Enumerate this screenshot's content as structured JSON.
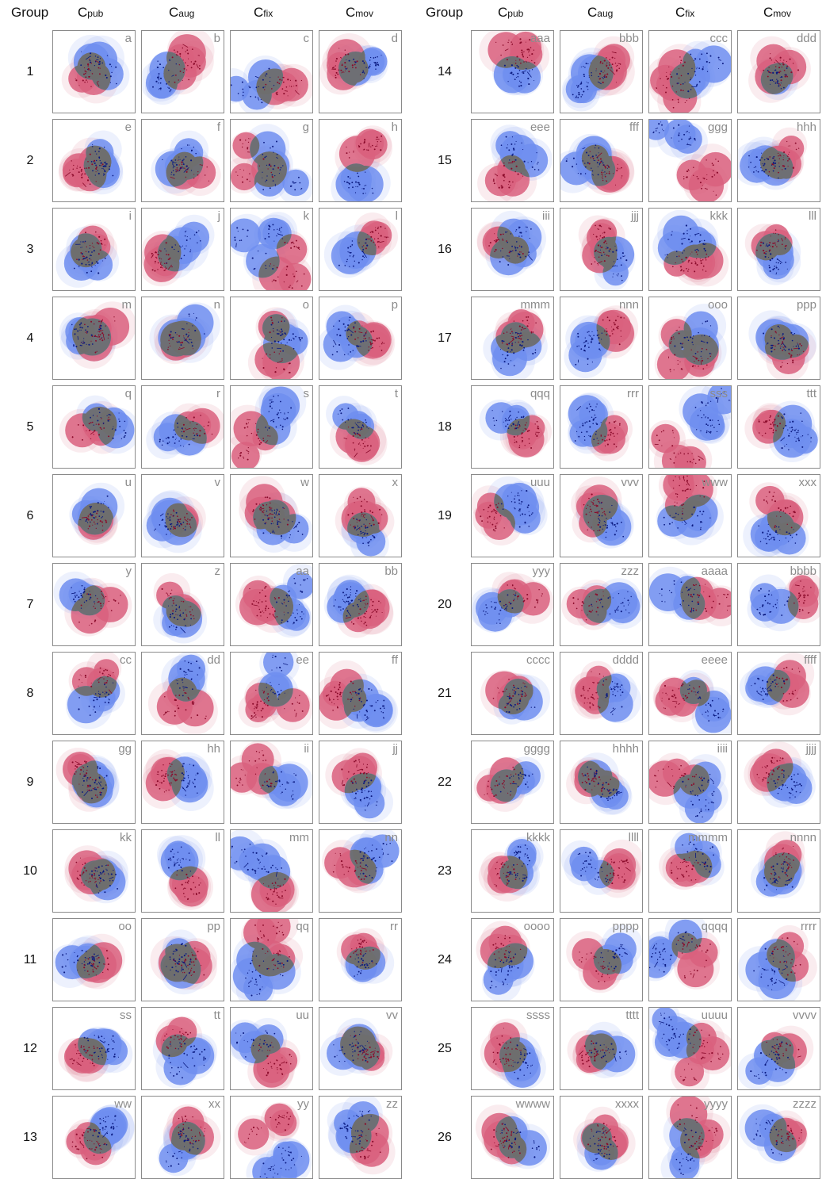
{
  "header": {
    "group_label": "Group",
    "columns": [
      {
        "main": "C",
        "sub": "pub"
      },
      {
        "main": "C",
        "sub": "aug"
      },
      {
        "main": "C",
        "sub": "fix"
      },
      {
        "main": "C",
        "sub": "mov"
      }
    ]
  },
  "colors": {
    "red": "#d9607e",
    "blue": "#6f8ef0",
    "overlap": "#6e6e6e",
    "red_dot": "#8a0a2a",
    "blue_dot": "#0a1a80"
  },
  "groups": [
    {
      "n": "1",
      "labels": [
        "a",
        "b",
        "c",
        "d"
      ]
    },
    {
      "n": "2",
      "labels": [
        "e",
        "f",
        "g",
        "h"
      ]
    },
    {
      "n": "3",
      "labels": [
        "i",
        "j",
        "k",
        "l"
      ]
    },
    {
      "n": "4",
      "labels": [
        "m",
        "n",
        "o",
        "p"
      ]
    },
    {
      "n": "5",
      "labels": [
        "q",
        "r",
        "s",
        "t"
      ]
    },
    {
      "n": "6",
      "labels": [
        "u",
        "v",
        "w",
        "x"
      ]
    },
    {
      "n": "7",
      "labels": [
        "y",
        "z",
        "aa",
        "bb"
      ]
    },
    {
      "n": "8",
      "labels": [
        "cc",
        "dd",
        "ee",
        "ff"
      ]
    },
    {
      "n": "9",
      "labels": [
        "gg",
        "hh",
        "ii",
        "jj"
      ]
    },
    {
      "n": "10",
      "labels": [
        "kk",
        "ll",
        "mm",
        "nn"
      ]
    },
    {
      "n": "11",
      "labels": [
        "oo",
        "pp",
        "qq",
        "rr"
      ]
    },
    {
      "n": "12",
      "labels": [
        "ss",
        "tt",
        "uu",
        "vv"
      ]
    },
    {
      "n": "13",
      "labels": [
        "ww",
        "xx",
        "yy",
        "zz"
      ]
    },
    {
      "n": "14",
      "labels": [
        "aaa",
        "bbb",
        "ccc",
        "ddd"
      ]
    },
    {
      "n": "15",
      "labels": [
        "eee",
        "fff",
        "ggg",
        "hhh"
      ]
    },
    {
      "n": "16",
      "labels": [
        "iii",
        "jjj",
        "kkk",
        "lll"
      ]
    },
    {
      "n": "17",
      "labels": [
        "mmm",
        "nnn",
        "ooo",
        "ppp"
      ]
    },
    {
      "n": "18",
      "labels": [
        "qqq",
        "rrr",
        "sss",
        "ttt"
      ]
    },
    {
      "n": "19",
      "labels": [
        "uuu",
        "vvv",
        "www",
        "xxx"
      ]
    },
    {
      "n": "20",
      "labels": [
        "yyy",
        "zzz",
        "aaaa",
        "bbbb"
      ]
    },
    {
      "n": "21",
      "labels": [
        "cccc",
        "dddd",
        "eeee",
        "ffff"
      ]
    },
    {
      "n": "22",
      "labels": [
        "gggg",
        "hhhh",
        "iiii",
        "jjjj"
      ]
    },
    {
      "n": "23",
      "labels": [
        "kkkk",
        "llll",
        "mmmm",
        "nnnn"
      ]
    },
    {
      "n": "24",
      "labels": [
        "oooo",
        "pppp",
        "qqqq",
        "rrrr"
      ]
    },
    {
      "n": "25",
      "labels": [
        "ssss",
        "tttt",
        "uuuu",
        "vvvv"
      ]
    },
    {
      "n": "26",
      "labels": [
        "wwww",
        "xxxx",
        "yyyy",
        "zzzz"
      ]
    }
  ]
}
